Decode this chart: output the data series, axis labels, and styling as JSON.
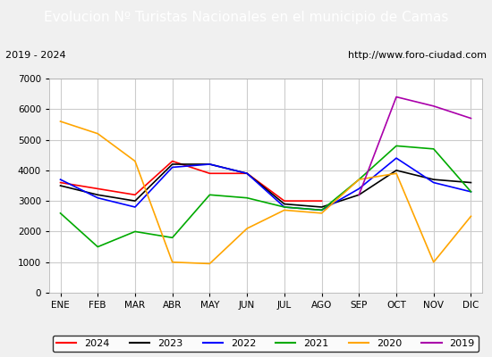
{
  "title": "Evolucion Nº Turistas Nacionales en el municipio de Camas",
  "subtitle_left": "2019 - 2024",
  "subtitle_right": "http://www.foro-ciudad.com",
  "title_bg_color": "#4472c4",
  "title_text_color": "#ffffff",
  "months": [
    "ENE",
    "FEB",
    "MAR",
    "ABR",
    "MAY",
    "JUN",
    "JUL",
    "AGO",
    "SEP",
    "OCT",
    "NOV",
    "DIC"
  ],
  "ylim": [
    0,
    7000
  ],
  "yticks": [
    0,
    1000,
    2000,
    3000,
    4000,
    5000,
    6000,
    7000
  ],
  "series": {
    "2024": {
      "color": "#ff0000",
      "values": [
        3600,
        3400,
        3200,
        4300,
        3900,
        3900,
        3000,
        3000,
        null,
        null,
        null,
        null
      ]
    },
    "2023": {
      "color": "#000000",
      "values": [
        3500,
        3200,
        3000,
        4200,
        4200,
        3900,
        2900,
        2800,
        3200,
        4000,
        3700,
        3600
      ]
    },
    "2022": {
      "color": "#0000ff",
      "values": [
        3700,
        3100,
        2800,
        4100,
        4200,
        3900,
        2800,
        2700,
        3400,
        4400,
        3600,
        3300
      ]
    },
    "2021": {
      "color": "#00aa00",
      "values": [
        2600,
        1500,
        2000,
        1800,
        3200,
        3100,
        2800,
        2700,
        3700,
        4800,
        4700,
        3300
      ]
    },
    "2020": {
      "color": "#ffa500",
      "values": [
        5600,
        5200,
        4300,
        1000,
        950,
        2100,
        2700,
        2600,
        3700,
        3900,
        1000,
        2500
      ]
    },
    "2019": {
      "color": "#aa00aa",
      "values": [
        null,
        null,
        null,
        null,
        null,
        null,
        null,
        null,
        3200,
        6400,
        6100,
        5700
      ]
    }
  },
  "legend_order": [
    "2024",
    "2023",
    "2022",
    "2021",
    "2020",
    "2019"
  ],
  "bg_color": "#f0f0f0",
  "plot_bg_color": "#ffffff",
  "grid_color": "#cccccc"
}
